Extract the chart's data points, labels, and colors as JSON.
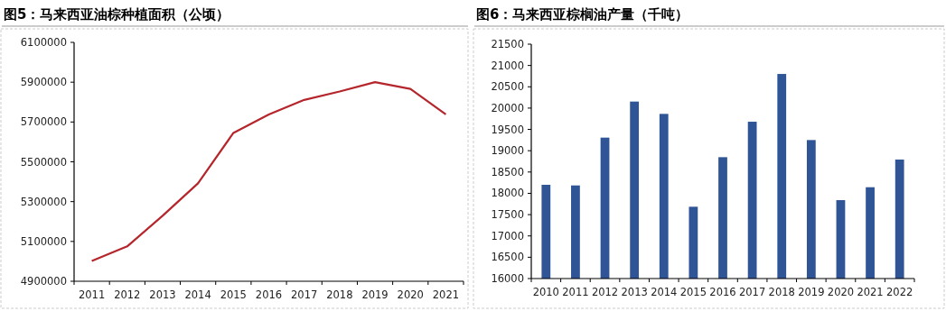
{
  "chart_data": [
    {
      "type": "line",
      "title": "图5：马来西亚油棕种植面积（公顷）",
      "categories": [
        "2011",
        "2012",
        "2013",
        "2014",
        "2015",
        "2016",
        "2017",
        "2018",
        "2019",
        "2020",
        "2021"
      ],
      "values": [
        5002000,
        5075000,
        5229000,
        5392000,
        5645000,
        5738000,
        5811000,
        5853000,
        5900000,
        5866000,
        5738000
      ],
      "color": "#b5262c",
      "ylim": [
        4900000,
        6100000
      ],
      "yticks": [
        4900000,
        5100000,
        5300000,
        5500000,
        5700000,
        5900000,
        6100000
      ]
    },
    {
      "type": "bar",
      "title": "图6：马来西亚棕榈油产量（千吨）",
      "categories": [
        "2010",
        "2011",
        "2012",
        "2013",
        "2014",
        "2015",
        "2016",
        "2017",
        "2018",
        "2019",
        "2020",
        "2021",
        "2022"
      ],
      "values": [
        18200,
        18185,
        19307,
        20153,
        19864,
        17685,
        18848,
        19680,
        20801,
        19250,
        17840,
        18143,
        18792
      ],
      "color": "#2f5597",
      "ylim": [
        16000,
        21500
      ],
      "yticks": [
        16000,
        16500,
        17000,
        17500,
        18000,
        18500,
        19000,
        19500,
        20000,
        20500,
        21000,
        21500
      ]
    }
  ]
}
